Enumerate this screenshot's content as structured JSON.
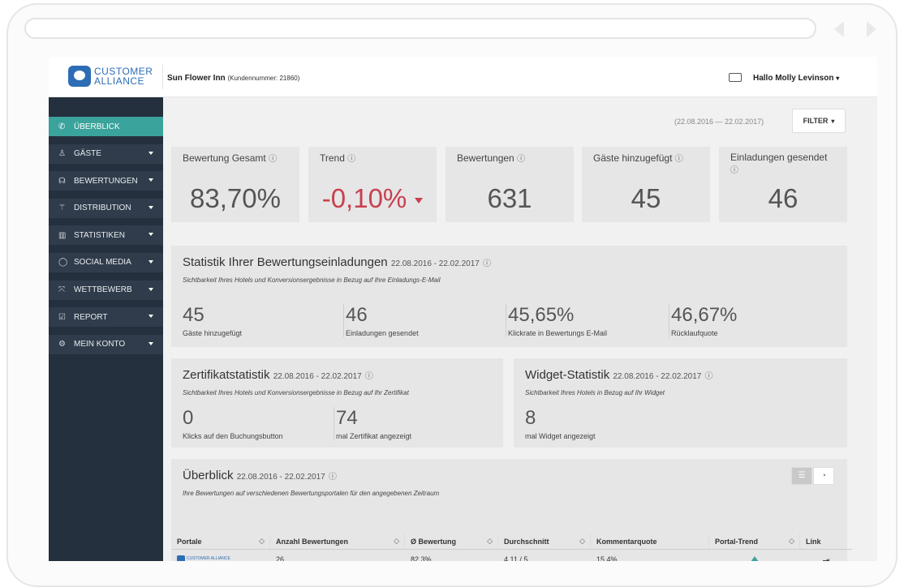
{
  "header": {
    "logo_line1": "CUSTOMER",
    "logo_line2": "ALLIANCE",
    "hotel_name": "Sun Flower Inn",
    "customer_number": "(Kundennummer: 21860)",
    "user_greeting": "Hallo Molly Levinson"
  },
  "sidebar": {
    "items": [
      {
        "label": "ÜBERBLICK",
        "icon": "compass-icon",
        "glyph": "✆"
      },
      {
        "label": "GÄSTE",
        "icon": "user-icon",
        "glyph": "♙"
      },
      {
        "label": "BEWERTUNGEN",
        "icon": "speech-icon",
        "glyph": "☊"
      },
      {
        "label": "DISTRIBUTION",
        "icon": "distribution-icon",
        "glyph": "⚚"
      },
      {
        "label": "STATISTIKEN",
        "icon": "bar-chart-icon",
        "glyph": "▥"
      },
      {
        "label": "SOCIAL MEDIA",
        "icon": "chat-bubble-icon",
        "glyph": "◯"
      },
      {
        "label": "WETTBEWERB",
        "icon": "compete-icon",
        "glyph": "⤧"
      },
      {
        "label": "REPORT",
        "icon": "clipboard-icon",
        "glyph": "☑"
      },
      {
        "label": "MEIN KONTO",
        "icon": "gear-icon",
        "glyph": "⚙"
      }
    ]
  },
  "toolbar": {
    "date_range": "(22.08.2016 — 22.02.2017)",
    "filter_label": "FILTER"
  },
  "kpis": [
    {
      "label": "Bewertung Gesamt",
      "value": "83,70%"
    },
    {
      "label": "Trend",
      "value": "-0,10%"
    },
    {
      "label": "Bewertungen",
      "value": "631"
    },
    {
      "label": "Gäste hinzugefügt",
      "value": "45"
    },
    {
      "label": "Einladungen gesendet",
      "value": "46"
    }
  ],
  "invitations": {
    "title": "Statistik Ihrer Bewertungseinladungen",
    "range": "22.08.2016 - 22.02.2017",
    "subtitle": "Sichtbarkeit Ihres Hotels und Konversionsergebnisse in Bezug auf Ihre Einladungs-E-Mail",
    "stats": [
      {
        "value": "45",
        "label": "Gäste hinzugefügt"
      },
      {
        "value": "46",
        "label": "Einladungen gesendet"
      },
      {
        "value": "45,65%",
        "label": "Klickrate in Bewertungs E-Mail"
      },
      {
        "value": "46,67%",
        "label": "Rücklaufquote"
      }
    ]
  },
  "certificate": {
    "title": "Zertifikatstatistik",
    "range": "22.08.2016 - 22.02.2017",
    "subtitle": "Sichtbarkeit Ihres Hotels und Konversionsergebnisse in Bezug auf Ihr Zertifikat",
    "stats": [
      {
        "value": "0",
        "label": "Klicks auf den Buchungsbutton"
      },
      {
        "value": "74",
        "label": "mal Zertifikat angezeigt"
      }
    ]
  },
  "widget": {
    "title": "Widget-Statistik",
    "range": "22.08.2016 - 22.02.2017",
    "subtitle": "Sichtbarkeit Ihres Hotels in Bezug auf Ihr Widget",
    "stats": [
      {
        "value": "8",
        "label": "mal Widget angezeigt"
      }
    ]
  },
  "overview": {
    "title": "Überblick",
    "range": "22.08.2016 - 22.02.2017",
    "subtitle": "Ihre Bewertungen auf verschiedenen Bewertungsportalen für den angegebenen Zeitraum",
    "columns": [
      "Portale",
      "Anzahl Bewertungen",
      "Ø Bewertung",
      "Durchschnitt",
      "Kommentarquote",
      "Portal-Trend",
      "Link"
    ],
    "rows": [
      {
        "portal": "CUSTOMER ALLIANCE",
        "count": "26",
        "avg": "82,3%",
        "average": "4,11 / 5",
        "comment_rate": "15,4%",
        "trend": "up"
      }
    ]
  },
  "colors": {
    "accent": "#3aa39b",
    "sidebar": "#25303e",
    "negative": "#c8404f",
    "brand": "#2d6db5"
  }
}
